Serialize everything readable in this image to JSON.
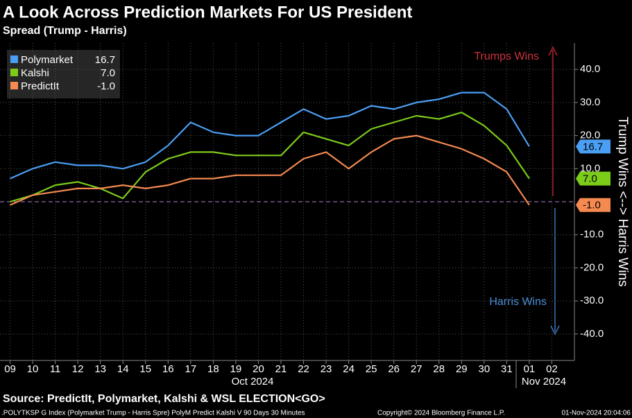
{
  "chart_data": {
    "type": "line",
    "title": "A Look Across Prediction Markets For US President",
    "subtitle": "Spread (Trump - Harris)",
    "y_axis_label": "Trump Wins <--> Harris Wins",
    "annotations": [
      "Trumps Wins",
      "Harris Wins"
    ],
    "source": "Source: PredictIt, Polymarket, Kalshi & WSL ELECTION<GO>",
    "footer": [
      ".POLYTKSP G Index (Polymarket Trump - Harris Spre) PolyM Predict Kalshi V 90 Days 30 Minutes",
      "Copyright© 2024 Bloomberg Finance L.P.",
      "01-Nov-2024 20:04:06"
    ],
    "x_group_labels": [
      "Oct 2024",
      "Nov 2024"
    ],
    "x": [
      "2024-10-09",
      "2024-10-10",
      "2024-10-11",
      "2024-10-12",
      "2024-10-13",
      "2024-10-14",
      "2024-10-15",
      "2024-10-16",
      "2024-10-17",
      "2024-10-18",
      "2024-10-19",
      "2024-10-20",
      "2024-10-21",
      "2024-10-22",
      "2024-10-23",
      "2024-10-24",
      "2024-10-25",
      "2024-10-26",
      "2024-10-27",
      "2024-10-28",
      "2024-10-29",
      "2024-10-30",
      "2024-10-31",
      "2024-11-01"
    ],
    "series": [
      {
        "name": "Polymarket",
        "color": "#4a9ff5",
        "legend_value": "16.7",
        "values": [
          7,
          10,
          12,
          11,
          11,
          10,
          12,
          17,
          24,
          21,
          20,
          20,
          24,
          28,
          25,
          26,
          29,
          28,
          30,
          31,
          33,
          33,
          28,
          16.7
        ]
      },
      {
        "name": "Kalshi",
        "color": "#7ccc1a",
        "legend_value": "7.0",
        "values": [
          0,
          2,
          5,
          6,
          4,
          1,
          9,
          13,
          15,
          15,
          14,
          14,
          14,
          21,
          19,
          17,
          22,
          24,
          26,
          25,
          27,
          23,
          17,
          7.0
        ]
      },
      {
        "name": "PredictIt",
        "color": "#f58a50",
        "legend_value": "-1.0",
        "values": [
          -1,
          2,
          3,
          4,
          4,
          5,
          4,
          5,
          7,
          7,
          8,
          8,
          8,
          13,
          15,
          10,
          15,
          19,
          20,
          18,
          16,
          13,
          9,
          -1.0
        ]
      }
    ],
    "xlim": [
      "2024-10-08",
      "2024-11-03"
    ],
    "xticks": [
      {
        "value": "2024-10-09",
        "label": "09"
      },
      {
        "value": "2024-10-10",
        "label": "10"
      },
      {
        "value": "2024-10-11",
        "label": "11"
      },
      {
        "value": "2024-10-12",
        "label": "12"
      },
      {
        "value": "2024-10-13",
        "label": "13"
      },
      {
        "value": "2024-10-14",
        "label": "14"
      },
      {
        "value": "2024-10-15",
        "label": "15"
      },
      {
        "value": "2024-10-16",
        "label": "16"
      },
      {
        "value": "2024-10-17",
        "label": "17"
      },
      {
        "value": "2024-10-18",
        "label": "18"
      },
      {
        "value": "2024-10-19",
        "label": "19"
      },
      {
        "value": "2024-10-20",
        "label": "20"
      },
      {
        "value": "2024-10-21",
        "label": "21"
      },
      {
        "value": "2024-10-22",
        "label": "22"
      },
      {
        "value": "2024-10-23",
        "label": "23"
      },
      {
        "value": "2024-10-24",
        "label": "24"
      },
      {
        "value": "2024-10-25",
        "label": "25"
      },
      {
        "value": "2024-10-26",
        "label": "26"
      },
      {
        "value": "2024-10-27",
        "label": "27"
      },
      {
        "value": "2024-10-28",
        "label": "28"
      },
      {
        "value": "2024-10-29",
        "label": "29"
      },
      {
        "value": "2024-10-30",
        "label": "30"
      },
      {
        "value": "2024-10-31",
        "label": "31"
      },
      {
        "value": "2024-11-01",
        "label": "01"
      },
      {
        "value": "2024-11-02",
        "label": "02"
      }
    ],
    "ylim": [
      -48,
      48
    ],
    "yticks": [
      {
        "value": 40,
        "label": "40.0"
      },
      {
        "value": 30,
        "label": "30.0"
      },
      {
        "value": 20,
        "label": "20.0"
      },
      {
        "value": 10,
        "label": "10.0"
      },
      {
        "value": -10,
        "label": "-10.0"
      },
      {
        "value": -20,
        "label": "-20.0"
      },
      {
        "value": -30,
        "label": "-30.0"
      },
      {
        "value": -40,
        "label": "-40.0"
      }
    ],
    "reference_line": 0,
    "grid": true,
    "legend": "upper left"
  }
}
